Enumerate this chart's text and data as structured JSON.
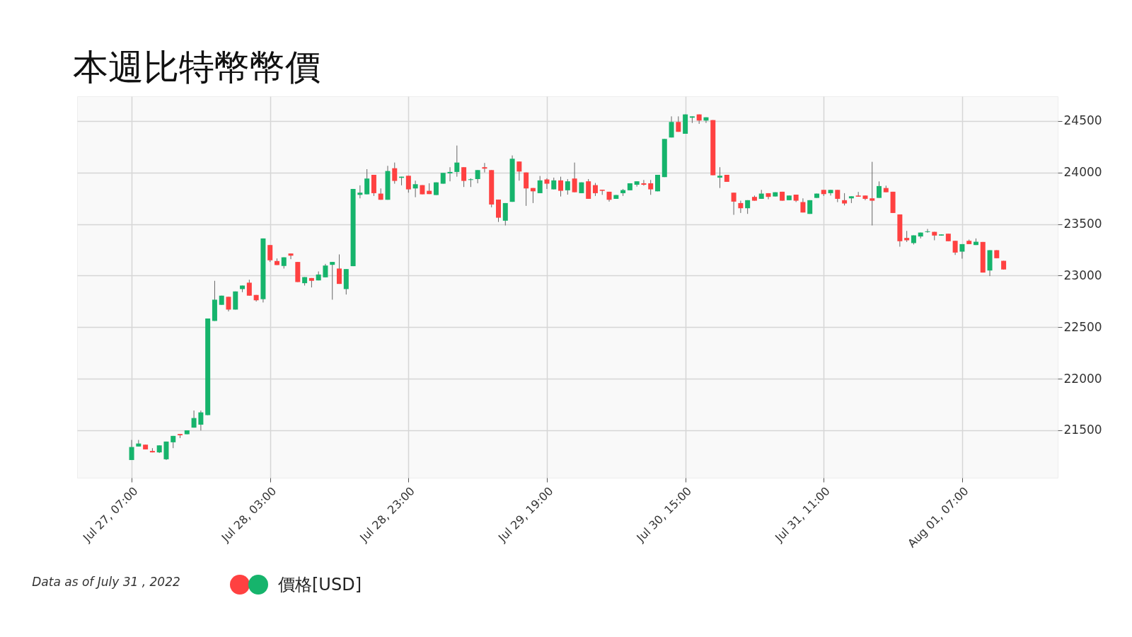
{
  "chart_data": {
    "type": "candlestick",
    "title": "本週比特幣幣價",
    "annotations": [
      "Data as of July 31 , 2022"
    ],
    "x": [
      "2022-07-27T07:00",
      "2022-07-27T08:00",
      "2022-07-27T09:00",
      "2022-07-27T10:00",
      "2022-07-27T11:00",
      "2022-07-27T12:00",
      "2022-07-27T13:00",
      "2022-07-27T14:00",
      "2022-07-27T15:00",
      "2022-07-27T16:00",
      "2022-07-27T17:00",
      "2022-07-27T18:00",
      "2022-07-27T19:00",
      "2022-07-27T20:00",
      "2022-07-27T21:00",
      "2022-07-27T22:00",
      "2022-07-27T23:00",
      "2022-07-28T00:00",
      "2022-07-28T01:00",
      "2022-07-28T02:00",
      "2022-07-28T03:00",
      "2022-07-28T04:00",
      "2022-07-28T05:00",
      "2022-07-28T06:00",
      "2022-07-28T07:00",
      "2022-07-28T08:00",
      "2022-07-28T09:00",
      "2022-07-28T10:00",
      "2022-07-28T11:00",
      "2022-07-28T12:00",
      "2022-07-28T13:00",
      "2022-07-28T14:00",
      "2022-07-28T15:00",
      "2022-07-28T16:00",
      "2022-07-28T17:00",
      "2022-07-28T18:00",
      "2022-07-28T19:00",
      "2022-07-28T20:00",
      "2022-07-28T21:00",
      "2022-07-28T22:00",
      "2022-07-28T23:00",
      "2022-07-29T00:00",
      "2022-07-29T01:00",
      "2022-07-29T02:00",
      "2022-07-29T03:00",
      "2022-07-29T04:00",
      "2022-07-29T05:00",
      "2022-07-29T06:00",
      "2022-07-29T07:00",
      "2022-07-29T08:00",
      "2022-07-29T09:00",
      "2022-07-29T10:00",
      "2022-07-29T11:00",
      "2022-07-29T12:00",
      "2022-07-29T13:00",
      "2022-07-29T14:00",
      "2022-07-29T15:00",
      "2022-07-29T16:00",
      "2022-07-29T17:00",
      "2022-07-29T18:00",
      "2022-07-29T19:00",
      "2022-07-29T20:00",
      "2022-07-29T21:00",
      "2022-07-29T22:00",
      "2022-07-29T23:00",
      "2022-07-30T00:00",
      "2022-07-30T01:00",
      "2022-07-30T02:00",
      "2022-07-30T03:00",
      "2022-07-30T04:00",
      "2022-07-30T05:00",
      "2022-07-30T06:00",
      "2022-07-30T07:00",
      "2022-07-30T08:00",
      "2022-07-30T09:00",
      "2022-07-30T10:00",
      "2022-07-30T11:00",
      "2022-07-30T12:00",
      "2022-07-30T13:00",
      "2022-07-30T14:00",
      "2022-07-30T15:00",
      "2022-07-30T16:00",
      "2022-07-30T17:00",
      "2022-07-30T18:00",
      "2022-07-30T19:00",
      "2022-07-30T20:00",
      "2022-07-30T21:00",
      "2022-07-30T22:00",
      "2022-07-30T23:00",
      "2022-07-31T00:00",
      "2022-07-31T01:00",
      "2022-07-31T02:00",
      "2022-07-31T03:00",
      "2022-07-31T04:00",
      "2022-07-31T05:00",
      "2022-07-31T06:00",
      "2022-07-31T07:00",
      "2022-07-31T08:00",
      "2022-07-31T09:00",
      "2022-07-31T10:00",
      "2022-07-31T11:00",
      "2022-07-31T12:00",
      "2022-07-31T13:00",
      "2022-07-31T14:00",
      "2022-07-31T15:00",
      "2022-07-31T16:00",
      "2022-07-31T17:00",
      "2022-07-31T18:00",
      "2022-07-31T19:00",
      "2022-07-31T20:00",
      "2022-07-31T21:00",
      "2022-07-31T22:00",
      "2022-07-31T23:00",
      "2022-08-01T00:00",
      "2022-08-01T01:00",
      "2022-08-01T02:00",
      "2022-08-01T03:00",
      "2022-08-01T04:00",
      "2022-08-01T05:00",
      "2022-08-01T06:00",
      "2022-08-01T07:00",
      "2022-08-01T08:00",
      "2022-08-01T09:00",
      "2022-08-01T10:00",
      "2022-08-01T11:00",
      "2022-08-01T12:00",
      "2022-08-01T13:00"
    ],
    "series": [
      {
        "name": "價格[USD]",
        "ohlc": [
          [
            21212,
            21407,
            21212,
            21338
          ],
          [
            21343,
            21407,
            21343,
            21372
          ],
          [
            21361,
            21361,
            21315,
            21315
          ],
          [
            21300,
            21327,
            21286,
            21286
          ],
          [
            21286,
            21354,
            21280,
            21354
          ],
          [
            21219,
            21391,
            21212,
            21391
          ],
          [
            21384,
            21446,
            21327,
            21446
          ],
          [
            21464,
            21464,
            21425,
            21452
          ],
          [
            21462,
            21500,
            21462,
            21500
          ],
          [
            21526,
            21692,
            21526,
            21619
          ],
          [
            21555,
            21692,
            21498,
            21674
          ],
          [
            21647,
            22584,
            21647,
            22584
          ],
          [
            22561,
            22950,
            22561,
            22767
          ],
          [
            22717,
            22806,
            22717,
            22806
          ],
          [
            22795,
            22795,
            22653,
            22671
          ],
          [
            22671,
            22847,
            22671,
            22847
          ],
          [
            22870,
            22904,
            22840,
            22904
          ],
          [
            22932,
            22961,
            22806,
            22806
          ],
          [
            22813,
            22813,
            22749,
            22762
          ],
          [
            22772,
            23361,
            22740,
            23361
          ],
          [
            23297,
            23297,
            23133,
            23149
          ],
          [
            23142,
            23167,
            23103,
            23103
          ],
          [
            23094,
            23178,
            23069,
            23178
          ],
          [
            23215,
            23215,
            23160,
            23194
          ],
          [
            23133,
            23133,
            22938,
            22938
          ],
          [
            22927,
            22986,
            22904,
            22986
          ],
          [
            22977,
            22977,
            22886,
            22950
          ],
          [
            22954,
            23041,
            22954,
            23011
          ],
          [
            22984,
            23114,
            22984,
            23098
          ],
          [
            23105,
            23133,
            22767,
            23133
          ],
          [
            23069,
            23206,
            22920,
            22920
          ],
          [
            22870,
            23064,
            22817,
            23064
          ],
          [
            23092,
            23841,
            23092,
            23841
          ],
          [
            23784,
            23876,
            23750,
            23805
          ],
          [
            23789,
            24033,
            23789,
            23942
          ],
          [
            23978,
            23978,
            23773,
            23800
          ],
          [
            23796,
            23846,
            23736,
            23736
          ],
          [
            23736,
            24065,
            23736,
            24015
          ],
          [
            24042,
            24097,
            23892,
            23919
          ],
          [
            23949,
            23960,
            23876,
            23960
          ],
          [
            23969,
            23969,
            23805,
            23837
          ],
          [
            23846,
            23921,
            23761,
            23887
          ],
          [
            23878,
            23878,
            23789,
            23789
          ],
          [
            23823,
            23896,
            23791,
            23791
          ],
          [
            23782,
            23905,
            23782,
            23905
          ],
          [
            23892,
            23997,
            23892,
            23997
          ],
          [
            23992,
            24052,
            23915,
            24006
          ],
          [
            24006,
            24262,
            23960,
            24097
          ],
          [
            24052,
            24052,
            23860,
            23919
          ],
          [
            23928,
            23944,
            23860,
            23935
          ],
          [
            23937,
            24024,
            23896,
            24024
          ],
          [
            24052,
            24093,
            24001,
            24038
          ],
          [
            24024,
            24024,
            23663,
            23690
          ],
          [
            23738,
            23738,
            23521,
            23562
          ],
          [
            23533,
            23704,
            23487,
            23704
          ],
          [
            23716,
            24166,
            23716,
            24134
          ],
          [
            24107,
            24107,
            23921,
            24010
          ],
          [
            24001,
            24001,
            23677,
            23846
          ],
          [
            23850,
            23850,
            23704,
            23818
          ],
          [
            23800,
            23967,
            23800,
            23924
          ],
          [
            23933,
            23944,
            23841,
            23892
          ],
          [
            23837,
            23951,
            23837,
            23924
          ],
          [
            23924,
            23960,
            23768,
            23823
          ],
          [
            23828,
            23937,
            23786,
            23915
          ],
          [
            23942,
            24097,
            23809,
            23809
          ],
          [
            23800,
            23905,
            23800,
            23905
          ],
          [
            23915,
            23937,
            23745,
            23745
          ],
          [
            23878,
            23899,
            23773,
            23800
          ],
          [
            23834,
            23834,
            23784,
            23823
          ],
          [
            23814,
            23814,
            23718,
            23736
          ],
          [
            23745,
            23782,
            23745,
            23782
          ],
          [
            23800,
            23841,
            23773,
            23830
          ],
          [
            23828,
            23896,
            23828,
            23896
          ],
          [
            23882,
            23915,
            23864,
            23915
          ],
          [
            23896,
            23928,
            23873,
            23882
          ],
          [
            23896,
            23928,
            23784,
            23837
          ],
          [
            23818,
            23978,
            23818,
            23978
          ],
          [
            23956,
            24326,
            23956,
            24326
          ],
          [
            24340,
            24545,
            24340,
            24491
          ],
          [
            24491,
            24545,
            24395,
            24395
          ],
          [
            24376,
            24564,
            24376,
            24564
          ],
          [
            24532,
            24545,
            24481,
            24545
          ],
          [
            24564,
            24564,
            24472,
            24504
          ],
          [
            24504,
            24536,
            24481,
            24536
          ],
          [
            24509,
            24509,
            23974,
            23974
          ],
          [
            23951,
            24052,
            23850,
            23969
          ],
          [
            23978,
            23978,
            23910,
            23910
          ],
          [
            23805,
            23805,
            23590,
            23718
          ],
          [
            23704,
            23727,
            23608,
            23654
          ],
          [
            23654,
            23732,
            23599,
            23732
          ],
          [
            23764,
            23777,
            23727,
            23727
          ],
          [
            23745,
            23832,
            23745,
            23796
          ],
          [
            23800,
            23800,
            23741,
            23764
          ],
          [
            23768,
            23809,
            23768,
            23809
          ],
          [
            23814,
            23814,
            23727,
            23727
          ],
          [
            23732,
            23777,
            23732,
            23777
          ],
          [
            23786,
            23786,
            23714,
            23727
          ],
          [
            23713,
            23750,
            23613,
            23613
          ],
          [
            23599,
            23732,
            23599,
            23732
          ],
          [
            23754,
            23796,
            23754,
            23796
          ],
          [
            23832,
            23832,
            23773,
            23791
          ],
          [
            23800,
            23832,
            23777,
            23832
          ],
          [
            23832,
            23832,
            23713,
            23745
          ],
          [
            23732,
            23800,
            23681,
            23700
          ],
          [
            23750,
            23770,
            23704,
            23770
          ],
          [
            23777,
            23812,
            23766,
            23766
          ],
          [
            23777,
            23777,
            23732,
            23745
          ],
          [
            23750,
            24104,
            23487,
            23727
          ],
          [
            23754,
            23914,
            23754,
            23869
          ],
          [
            23850,
            23873,
            23809,
            23809
          ],
          [
            23814,
            23814,
            23608,
            23608
          ],
          [
            23594,
            23594,
            23281,
            23334
          ],
          [
            23366,
            23434,
            23327,
            23343
          ],
          [
            23316,
            23391,
            23302,
            23391
          ],
          [
            23380,
            23418,
            23361,
            23418
          ],
          [
            23423,
            23453,
            23416,
            23430
          ],
          [
            23425,
            23425,
            23343,
            23389
          ],
          [
            23389,
            23400,
            23389,
            23400
          ],
          [
            23407,
            23407,
            23334,
            23334
          ],
          [
            23338,
            23338,
            23201,
            23224
          ],
          [
            23233,
            23306,
            23165,
            23306
          ],
          [
            23338,
            23350,
            23306,
            23306
          ],
          [
            23297,
            23361,
            23297,
            23329
          ],
          [
            23327,
            23327,
            23030,
            23030
          ],
          [
            23050,
            23247,
            22996,
            23247
          ],
          [
            23247,
            23247,
            23169,
            23169
          ],
          [
            23144,
            23144,
            23060,
            23060
          ]
        ],
        "colors": [
          "#16b46c",
          "#16b46c",
          "#ff4141",
          "#ff4141",
          "#16b46c",
          "#16b46c",
          "#16b46c",
          "#ff4141",
          "#16b46c",
          "#16b46c",
          "#16b46c",
          "#16b46c",
          "#16b46c",
          "#16b46c",
          "#ff4141",
          "#16b46c",
          "#16b46c",
          "#ff4141",
          "#ff4141",
          "#16b46c",
          "#ff4141",
          "#ff4141",
          "#16b46c",
          "#ff4141",
          "#ff4141",
          "#16b46c",
          "#ff4141",
          "#16b46c",
          "#16b46c",
          "#16b46c",
          "#ff4141",
          "#16b46c",
          "#16b46c",
          "#16b46c",
          "#16b46c",
          "#ff4141",
          "#ff4141",
          "#16b46c",
          "#ff4141",
          "#16b46c",
          "#ff4141",
          "#16b46c",
          "#ff4141",
          "#ff4141",
          "#16b46c",
          "#16b46c",
          "#16b46c",
          "#16b46c",
          "#ff4141",
          "#16b46c",
          "#16b46c",
          "#ff4141",
          "#ff4141",
          "#ff4141",
          "#16b46c",
          "#16b46c",
          "#ff4141",
          "#ff4141",
          "#ff4141",
          "#16b46c",
          "#ff4141",
          "#16b46c",
          "#ff4141",
          "#16b46c",
          "#ff4141",
          "#16b46c",
          "#ff4141",
          "#ff4141",
          "#ff4141",
          "#ff4141",
          "#16b46c",
          "#16b46c",
          "#16b46c",
          "#16b46c",
          "#ff4141",
          "#ff4141",
          "#16b46c",
          "#16b46c",
          "#16b46c",
          "#ff4141",
          "#16b46c",
          "#16b46c",
          "#ff4141",
          "#16b46c",
          "#ff4141",
          "#16b46c",
          "#ff4141",
          "#ff4141",
          "#ff4141",
          "#16b46c",
          "#ff4141",
          "#16b46c",
          "#ff4141",
          "#16b46c",
          "#ff4141",
          "#16b46c",
          "#ff4141",
          "#ff4141",
          "#16b46c",
          "#16b46c",
          "#ff4141",
          "#16b46c",
          "#ff4141",
          "#ff4141",
          "#16b46c",
          "#ff4141",
          "#ff4141",
          "#ff4141",
          "#16b46c",
          "#ff4141",
          "#ff4141",
          "#ff4141",
          "#ff4141",
          "#16b46c",
          "#16b46c",
          "#16b46c",
          "#ff4141",
          "#16b46c",
          "#ff4141",
          "#ff4141",
          "#16b46c",
          "#ff4141",
          "#16b46c",
          "#ff4141",
          "#16b46c",
          "#ff4141",
          "#ff4141"
        ]
      }
    ],
    "xlim": [
      "2022-07-26T23:38",
      "2022-08-01T20:18"
    ],
    "xticks": [
      {
        "value": "2022-07-27T07:00",
        "label": "Jul 27, 07:00"
      },
      {
        "value": "2022-07-28T03:00",
        "label": "Jul 28, 03:00"
      },
      {
        "value": "2022-07-28T23:00",
        "label": "Jul 28, 23:00"
      },
      {
        "value": "2022-07-29T19:00",
        "label": "Jul 29, 19:00"
      },
      {
        "value": "2022-07-30T15:00",
        "label": "Jul 30, 15:00"
      },
      {
        "value": "2022-07-31T11:00",
        "label": "Jul 31, 11:00"
      },
      {
        "value": "2022-08-01T07:00",
        "label": "Aug 01, 07:00"
      }
    ],
    "ylim": [
      21040,
      24740
    ],
    "yticks": [
      21500,
      22000,
      22500,
      23000,
      23500,
      24000,
      24500
    ],
    "grid": true,
    "legend": "bottom"
  }
}
